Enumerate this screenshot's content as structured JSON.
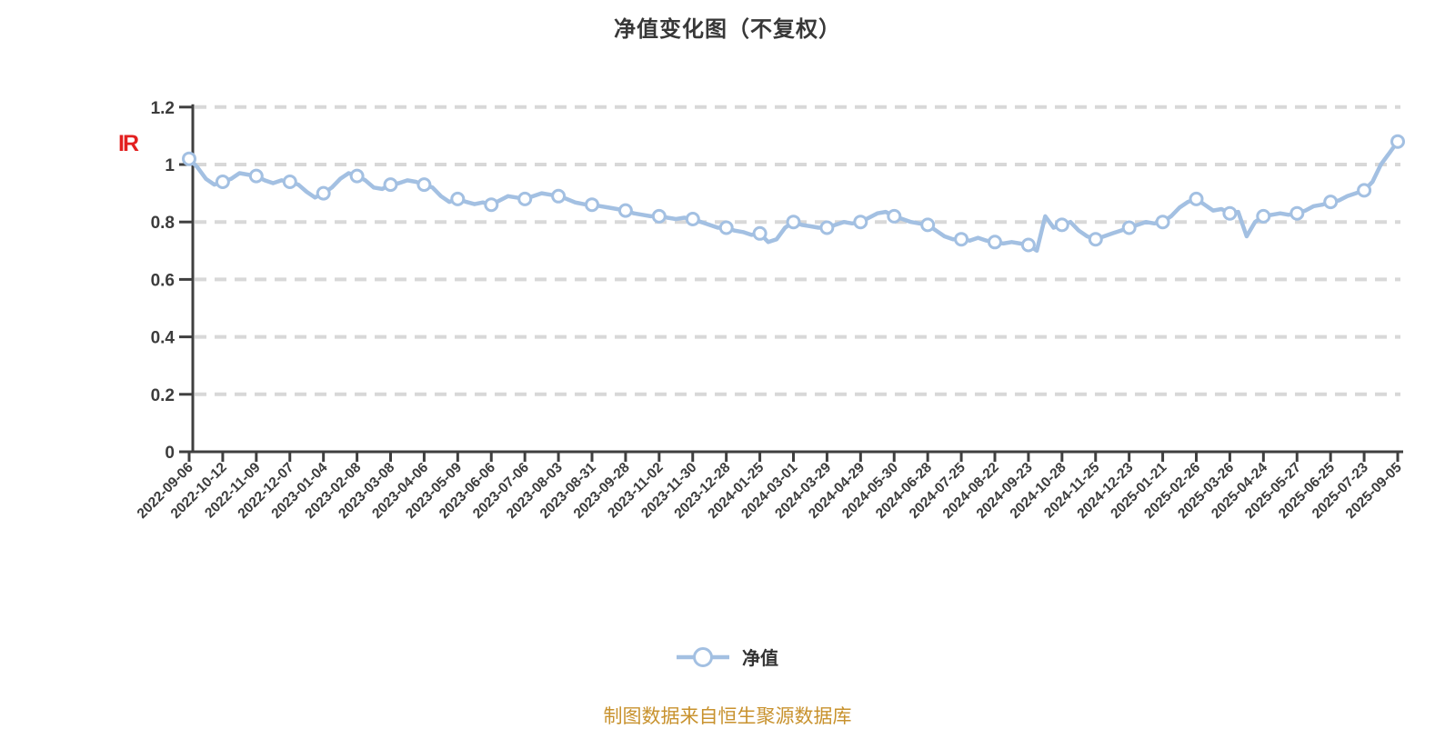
{
  "page": {
    "title": "净值变化图（不复权）"
  },
  "watermark": {
    "text": "IR",
    "color": "#e32020"
  },
  "legend": {
    "label": "净值"
  },
  "footnote": {
    "text": "制图数据来自恒生聚源数据库",
    "color": "#c8922e"
  },
  "chart_data": {
    "type": "line",
    "title": "净值变化图（不复权）",
    "xlabel": "",
    "ylabel": "",
    "ylim": [
      0,
      1.2
    ],
    "grid": {
      "horizontal_dashed": true,
      "color": "#d8d8d8"
    },
    "legend_position": "bottom",
    "y_ticks": {
      "values": [
        0,
        0.2,
        0.4,
        0.6,
        0.8,
        1,
        1.2
      ],
      "labels": [
        "0",
        "0.2",
        "0.4",
        "0.6",
        "0.8",
        "1",
        "1.2"
      ]
    },
    "categories": [
      "2022-09-06",
      "2022-10-12",
      "2022-11-09",
      "2022-12-07",
      "2023-01-04",
      "2023-02-08",
      "2023-03-08",
      "2023-04-06",
      "2023-05-09",
      "2023-06-06",
      "2023-07-06",
      "2023-08-03",
      "2023-08-31",
      "2023-09-28",
      "2023-11-02",
      "2023-11-30",
      "2023-12-28",
      "2024-01-25",
      "2024-03-01",
      "2024-03-29",
      "2024-04-29",
      "2024-05-30",
      "2024-06-28",
      "2024-07-25",
      "2024-08-22",
      "2024-09-23",
      "2024-10-28",
      "2024-11-25",
      "2024-12-23",
      "2025-01-21",
      "2025-02-26",
      "2025-03-26",
      "2025-04-24",
      "2025-05-27",
      "2025-06-25",
      "2025-07-23",
      "2025-09-05"
    ],
    "series": [
      {
        "name": "净值",
        "color": "#a3c0e2",
        "marker": {
          "shape": "circle",
          "fill": "#ffffff",
          "border": "#a3c0e2"
        },
        "markers_every_nth_dense_point": 4,
        "values_at_categories": [
          1.02,
          0.94,
          0.96,
          0.94,
          0.9,
          0.96,
          0.93,
          0.93,
          0.88,
          0.86,
          0.88,
          0.89,
          0.86,
          0.84,
          0.82,
          0.81,
          0.78,
          0.76,
          0.8,
          0.78,
          0.8,
          0.82,
          0.79,
          0.74,
          0.73,
          0.72,
          0.79,
          0.74,
          0.78,
          0.8,
          0.88,
          0.83,
          0.82,
          0.83,
          0.87,
          0.91,
          1.08
        ],
        "dense_values": [
          1.02,
          0.99,
          0.95,
          0.93,
          0.94,
          0.95,
          0.97,
          0.965,
          0.96,
          0.945,
          0.935,
          0.945,
          0.94,
          0.93,
          0.905,
          0.885,
          0.9,
          0.92,
          0.95,
          0.97,
          0.96,
          0.945,
          0.92,
          0.915,
          0.93,
          0.935,
          0.945,
          0.94,
          0.93,
          0.92,
          0.89,
          0.87,
          0.88,
          0.87,
          0.862,
          0.868,
          0.86,
          0.875,
          0.89,
          0.885,
          0.88,
          0.89,
          0.9,
          0.895,
          0.89,
          0.88,
          0.868,
          0.862,
          0.86,
          0.855,
          0.85,
          0.845,
          0.84,
          0.83,
          0.825,
          0.82,
          0.82,
          0.815,
          0.81,
          0.815,
          0.81,
          0.8,
          0.79,
          0.78,
          0.78,
          0.77,
          0.765,
          0.755,
          0.76,
          0.73,
          0.74,
          0.78,
          0.8,
          0.79,
          0.785,
          0.78,
          0.78,
          0.79,
          0.8,
          0.795,
          0.8,
          0.815,
          0.83,
          0.835,
          0.82,
          0.81,
          0.8,
          0.795,
          0.79,
          0.77,
          0.75,
          0.74,
          0.74,
          0.735,
          0.745,
          0.735,
          0.73,
          0.725,
          0.73,
          0.725,
          0.72,
          0.7,
          0.82,
          0.78,
          0.79,
          0.8,
          0.77,
          0.75,
          0.74,
          0.75,
          0.76,
          0.77,
          0.78,
          0.79,
          0.8,
          0.795,
          0.8,
          0.82,
          0.85,
          0.87,
          0.88,
          0.86,
          0.84,
          0.845,
          0.83,
          0.835,
          0.75,
          0.8,
          0.82,
          0.825,
          0.83,
          0.825,
          0.83,
          0.84,
          0.855,
          0.86,
          0.87,
          0.875,
          0.89,
          0.9,
          0.91,
          0.94,
          1.0,
          1.04,
          1.08
        ]
      }
    ],
    "style": {
      "axis_color": "#3f3f3f",
      "tick_label_color": "#3c3c3c",
      "grid_color": "#d8d8d8",
      "line_width": 4.5
    }
  }
}
